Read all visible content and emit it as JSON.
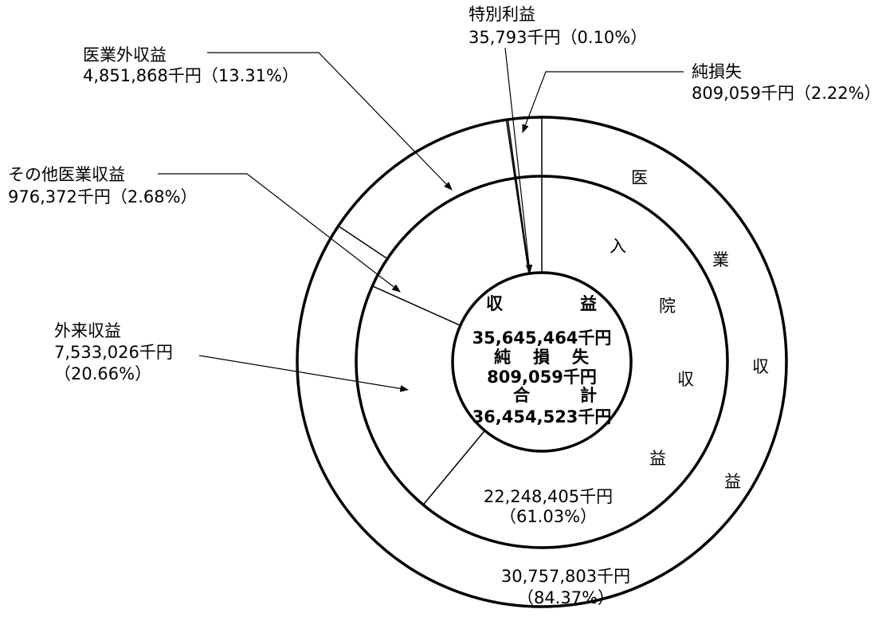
{
  "chart_data": {
    "type": "pie",
    "center_block": {
      "revenue_label": [
        "収",
        "益"
      ],
      "revenue_value": "35,645,464千円",
      "loss_label": [
        "純",
        "損",
        "失"
      ],
      "loss_value": "809,059千円",
      "total_label": [
        "合",
        "計"
      ],
      "total_value": "36,454,523千円"
    },
    "outer_ring": [
      {
        "name": "医業収益",
        "value": 30757803,
        "unit": "千円",
        "percent": 84.37,
        "vertical_label": [
          "医",
          "業",
          "収",
          "益"
        ],
        "value_text": "30,757,803千円",
        "percent_text": "（84.37%）"
      },
      {
        "name": "医業外収益",
        "value": 4851868,
        "unit": "千円",
        "percent": 13.31,
        "value_text": "4,851,868千円（13.31%）"
      },
      {
        "name": "特別利益",
        "value": 35793,
        "unit": "千円",
        "percent": 0.1,
        "value_text": "35,793千円（0.10%）"
      },
      {
        "name": "純損失",
        "value": 809059,
        "unit": "千円",
        "percent": 2.22,
        "value_text": "809,059千円（2.22%）"
      }
    ],
    "inner_ring": [
      {
        "name": "入院収益",
        "value": 22248405,
        "unit": "千円",
        "percent": 61.03,
        "vertical_label": [
          "入",
          "院",
          "収",
          "益"
        ],
        "value_text": "22,248,405千円",
        "percent_text": "（61.03%）"
      },
      {
        "name": "外来収益",
        "value": 7533026,
        "unit": "千円",
        "percent": 20.66,
        "value_lines": [
          "7,533,026千円",
          "（20.66%）"
        ]
      },
      {
        "name": "その他医業収益",
        "value": 976372,
        "unit": "千円",
        "percent": 2.68,
        "value_text": "976,372千円（2.68%）"
      }
    ]
  }
}
